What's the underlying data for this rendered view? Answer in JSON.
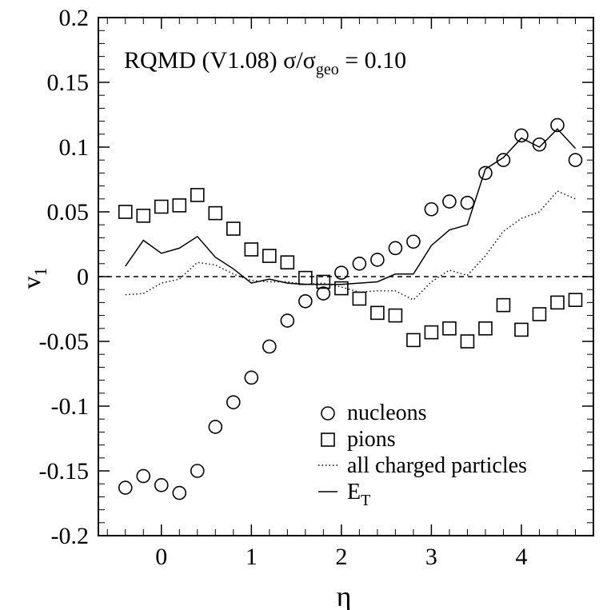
{
  "chart_data": {
    "type": "scatter",
    "title": "RQMD (V1.08)  σ/σ",
    "title_sub": "geo",
    "title_suffix": " = 0.10",
    "xlabel": "η",
    "ylabel": "v",
    "ylabel_sub": "1",
    "xlim": [
      -0.7,
      4.8
    ],
    "ylim": [
      -0.2,
      0.2
    ],
    "x_ticks": [
      0,
      1,
      2,
      3,
      4
    ],
    "x_tick_labels": [
      "0",
      "1",
      "2",
      "3",
      "4"
    ],
    "y_ticks": [
      -0.2,
      -0.15,
      -0.1,
      -0.05,
      0,
      0.05,
      0.1,
      0.15,
      0.2
    ],
    "y_tick_labels": [
      "-0.2",
      "-0.15",
      "-0.1",
      "-0.05",
      "0",
      "0.05",
      "0.1",
      "0.15",
      "0.2"
    ],
    "grid": false,
    "reference_line": {
      "y": 0,
      "style": "dashed"
    },
    "legend_position": "bottom-right",
    "series": [
      {
        "name": "nucleons",
        "marker": "circle",
        "x": [
          -0.4,
          -0.2,
          0.0,
          0.2,
          0.4,
          0.6,
          0.8,
          1.0,
          1.2,
          1.4,
          1.6,
          1.8,
          2.0,
          2.2,
          2.4,
          2.6,
          2.8,
          3.0,
          3.2,
          3.4,
          3.6,
          3.8,
          4.0,
          4.2,
          4.4,
          4.6
        ],
        "y": [
          -0.163,
          -0.154,
          -0.161,
          -0.167,
          -0.15,
          -0.116,
          -0.097,
          -0.078,
          -0.054,
          -0.034,
          -0.019,
          -0.013,
          0.003,
          0.01,
          0.013,
          0.022,
          0.027,
          0.052,
          0.058,
          0.057,
          0.08,
          0.09,
          0.109,
          0.102,
          0.117,
          0.09
        ]
      },
      {
        "name": "pions",
        "marker": "square",
        "x": [
          -0.4,
          -0.2,
          0.0,
          0.2,
          0.4,
          0.6,
          0.8,
          1.0,
          1.2,
          1.4,
          1.6,
          1.8,
          2.0,
          2.2,
          2.4,
          2.6,
          2.8,
          3.0,
          3.2,
          3.4,
          3.6,
          3.8,
          4.0,
          4.2,
          4.4,
          4.6
        ],
        "y": [
          0.05,
          0.047,
          0.054,
          0.055,
          0.063,
          0.049,
          0.037,
          0.021,
          0.016,
          0.011,
          -0.001,
          -0.004,
          -0.009,
          -0.017,
          -0.028,
          -0.03,
          -0.049,
          -0.043,
          -0.04,
          -0.05,
          -0.04,
          -0.022,
          -0.041,
          -0.029,
          -0.02,
          -0.018
        ]
      },
      {
        "name": "all charged particles",
        "marker": "dotted-line",
        "x": [
          -0.4,
          -0.2,
          0.0,
          0.2,
          0.4,
          0.6,
          0.8,
          1.0,
          1.2,
          1.4,
          1.6,
          1.8,
          2.0,
          2.2,
          2.4,
          2.6,
          2.8,
          3.0,
          3.2,
          3.4,
          3.6,
          3.8,
          4.0,
          4.2,
          4.4,
          4.6
        ],
        "y": [
          -0.014,
          -0.013,
          -0.005,
          -0.002,
          0.011,
          0.009,
          0.002,
          -0.003,
          -0.004,
          -0.004,
          -0.006,
          -0.005,
          -0.008,
          -0.012,
          -0.011,
          -0.011,
          -0.018,
          -0.004,
          0.005,
          0.001,
          0.016,
          0.035,
          0.045,
          0.05,
          0.066,
          0.06
        ]
      },
      {
        "name": "E",
        "name_sub": "T",
        "marker": "solid-line",
        "x": [
          -0.4,
          -0.2,
          0.0,
          0.2,
          0.4,
          0.6,
          0.8,
          1.0,
          1.2,
          1.4,
          1.6,
          1.8,
          2.0,
          2.2,
          2.4,
          2.6,
          2.8,
          3.0,
          3.2,
          3.4,
          3.6,
          3.8,
          4.0,
          4.2,
          4.4,
          4.6
        ],
        "y": [
          0.008,
          0.028,
          0.018,
          0.022,
          0.031,
          0.015,
          0.006,
          -0.005,
          -0.002,
          -0.005,
          -0.006,
          -0.006,
          -0.006,
          -0.005,
          -0.004,
          0.002,
          0.002,
          0.024,
          0.036,
          0.04,
          0.083,
          0.092,
          0.107,
          0.1,
          0.114,
          0.099
        ]
      }
    ]
  }
}
